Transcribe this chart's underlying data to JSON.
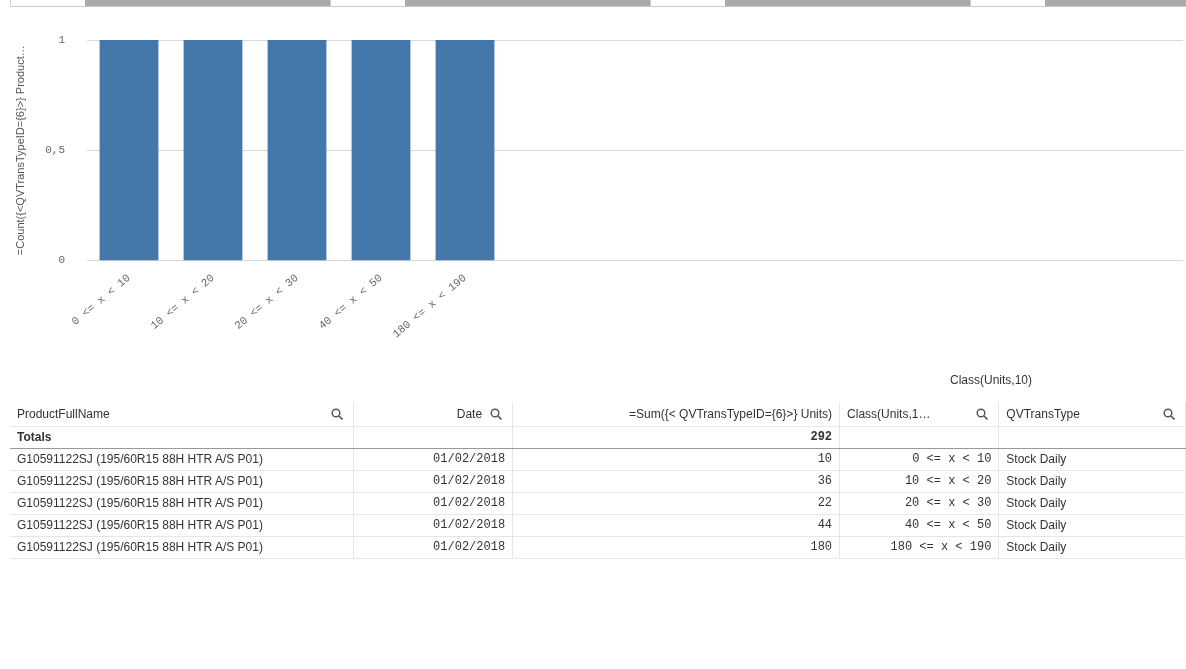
{
  "chart_data": [
    {
      "type": "bar",
      "ylabel": "=Count({<QVTransTypeID={6}>} Product…",
      "categories": [
        "0 <= x < 10",
        "10 <= x < 20",
        "20 <= x < 30",
        "40 <= x < 50",
        "180 <= x < 190"
      ],
      "values": [
        1,
        1,
        1,
        1,
        1
      ],
      "color": "#4477aa",
      "ylim": [
        0,
        1
      ],
      "yticks": [
        0,
        {
          "value": 0.5,
          "label": "0,5"
        },
        1
      ],
      "grid": "y"
    },
    {
      "type": "other",
      "annotations": [
        "Class(Units,10)",
        "ProductFullName",
        "Date",
        "=Sum({< QVTransTypeID={6}>} Units)",
        "Class(Units,1…",
        "QVTransType",
        "Totals",
        "292",
        "G10591122SJ (195/60R15 88H HTR A/S P01)",
        "01/02/2018",
        "10",
        "0 <= x < 10",
        "Stock Daily",
        "G10591122SJ (195/60R15 88H HTR A/S P01)",
        "01/02/2018",
        "36",
        "10 <= x < 20",
        "Stock Daily",
        "G10591122SJ (195/60R15 88H HTR A/S P01)",
        "01/02/2018",
        "22",
        "20 <= x < 30",
        "Stock Daily",
        "G10591122SJ (195/60R15 88H HTR A/S P01)",
        "01/02/2018",
        "44",
        "40 <= x < 50",
        "Stock Daily",
        "G10591122SJ (195/60R15 88H HTR A/S P01)",
        "01/02/2018",
        "180",
        "180 <= x < 190",
        "Stock Daily"
      ]
    }
  ]
}
